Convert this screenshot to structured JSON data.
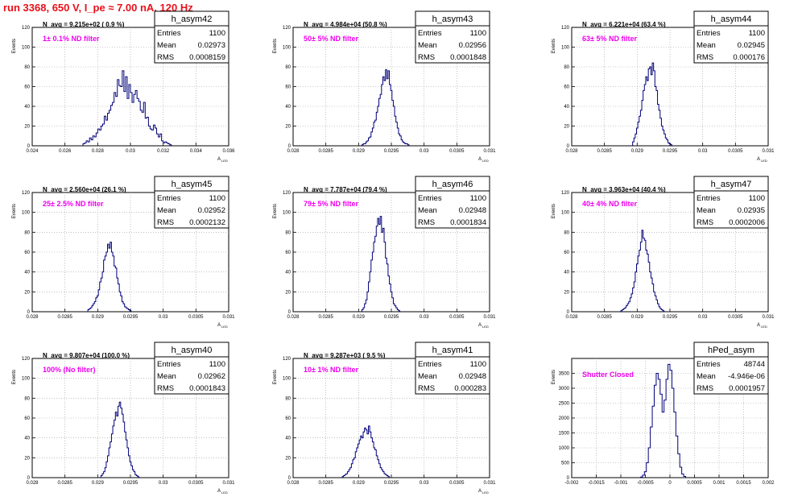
{
  "page": {
    "run_title": "run 3368,   650 V, I_pe ≈ 7.00 nA, 120 Hz",
    "colors": {
      "title": "#e8101a",
      "histogram": "#00007a",
      "note": "#ee00ee",
      "grid": "#9a9a9a"
    }
  },
  "chart_data": [
    {
      "type": "histogram",
      "name": "h_asym42",
      "stats": {
        "entries_label": "Entries",
        "entries": "1100",
        "mean_label": "Mean",
        "mean": "0.02973",
        "rms_label": "RMS",
        "rms": "0.0008159"
      },
      "navg": "N_avg = 9.215e+02 ( 0.9 %)",
      "note": "1± 0.1% ND filter",
      "ylabel": "Events",
      "xlabel": "A",
      "xlabel_sub": "LED",
      "xlim": [
        0.024,
        0.036
      ],
      "xticks": [
        "0.024",
        "0.026",
        "0.028",
        "0.03",
        "0.032",
        "0.034",
        "0.036"
      ],
      "ylim": [
        0,
        120
      ],
      "yticks": [
        "0",
        "20",
        "40",
        "60",
        "80",
        "100",
        "120"
      ],
      "grid": true,
      "bins": {
        "x_start": 0.0271,
        "bin_width": 0.0001,
        "values": [
          2,
          3,
          5,
          4,
          8,
          6,
          10,
          9,
          13,
          17,
          16,
          20,
          22,
          30,
          26,
          33,
          36,
          41,
          44,
          54,
          50,
          67,
          61,
          60,
          76,
          55,
          70,
          48,
          62,
          54,
          44,
          52,
          56,
          48,
          45,
          36,
          34,
          44,
          28,
          29,
          20,
          17,
          16,
          21,
          18,
          12,
          9,
          12,
          5,
          3,
          4,
          3,
          2,
          1
        ]
      }
    },
    {
      "type": "histogram",
      "name": "h_asym43",
      "stats": {
        "entries_label": "Entries",
        "entries": "1100",
        "mean_label": "Mean",
        "mean": "0.02956",
        "rms_label": "RMS",
        "rms": "0.0001848"
      },
      "navg": "N_avg = 4.984e+04 (50.8 %)",
      "note": "50± 5% ND filter",
      "ylabel": "Events",
      "xlabel": "A",
      "xlabel_sub": "LED",
      "xlim": [
        0.028,
        0.031
      ],
      "xticks": [
        "0.028",
        "0.0285",
        "0.029",
        "0.0295",
        "0.03",
        "0.0305",
        "0.031"
      ],
      "ylim": [
        0,
        120
      ],
      "yticks": [
        "0",
        "20",
        "40",
        "60",
        "80",
        "100",
        "120"
      ],
      "grid": true,
      "bins": {
        "x_start": 0.02905,
        "bin_width": 2e-05,
        "values": [
          1,
          2,
          2,
          4,
          5,
          8,
          9,
          14,
          18,
          24,
          26,
          34,
          40,
          48,
          52,
          62,
          70,
          66,
          77,
          68,
          76,
          62,
          56,
          46,
          40,
          30,
          24,
          18,
          12,
          10,
          6,
          4,
          3,
          2,
          2,
          1
        ]
      }
    },
    {
      "type": "histogram",
      "name": "h_asym44",
      "stats": {
        "entries_label": "Entries",
        "entries": "1100",
        "mean_label": "Mean",
        "mean": "0.02945",
        "rms_label": "RMS",
        "rms": "0.000176"
      },
      "navg": "N_avg = 6.221e+04 (63.4 %)",
      "note": "63± 5% ND filter",
      "ylabel": "Events",
      "xlabel": "A",
      "xlabel_sub": "LED",
      "xlim": [
        0.028,
        0.031
      ],
      "xticks": [
        "0.028",
        "0.0285",
        "0.029",
        "0.0295",
        "0.03",
        "0.0305",
        "0.031"
      ],
      "ylim": [
        0,
        120
      ],
      "yticks": [
        "0",
        "20",
        "40",
        "60",
        "80",
        "100",
        "120"
      ],
      "grid": true,
      "bins": {
        "x_start": 0.02893,
        "bin_width": 2e-05,
        "values": [
          4,
          8,
          12,
          18,
          24,
          30,
          36,
          46,
          56,
          62,
          70,
          66,
          78,
          80,
          72,
          84,
          76,
          60,
          56,
          42,
          36,
          28,
          20,
          16,
          12,
          8,
          6,
          3,
          2,
          1
        ]
      }
    },
    {
      "type": "histogram",
      "name": "h_asym45",
      "stats": {
        "entries_label": "Entries",
        "entries": "1100",
        "mean_label": "Mean",
        "mean": "0.02952",
        "rms_label": "RMS",
        "rms": "0.0002132"
      },
      "navg": "N_avg = 2.560e+04 (26.1 %)",
      "note": "25± 2.5% ND filter",
      "ylabel": "Events",
      "xlabel": "A",
      "xlabel_sub": "LED",
      "xlim": [
        0.028,
        0.031
      ],
      "xticks": [
        "0.028",
        "0.0285",
        "0.029",
        "0.0295",
        "0.03",
        "0.0305",
        "0.031"
      ],
      "ylim": [
        0,
        120
      ],
      "yticks": [
        "0",
        "20",
        "40",
        "60",
        "80",
        "100",
        "120"
      ],
      "grid": true,
      "bins": {
        "x_start": 0.02885,
        "bin_width": 2e-05,
        "values": [
          2,
          3,
          4,
          6,
          8,
          10,
          14,
          16,
          22,
          30,
          34,
          40,
          52,
          56,
          60,
          68,
          64,
          70,
          60,
          56,
          46,
          44,
          34,
          28,
          20,
          16,
          10,
          8,
          5,
          4,
          3,
          2,
          1
        ]
      }
    },
    {
      "type": "histogram",
      "name": "h_asym46",
      "stats": {
        "entries_label": "Entries",
        "entries": "1100",
        "mean_label": "Mean",
        "mean": "0.02948",
        "rms_label": "RMS",
        "rms": "0.0001834"
      },
      "navg": "N_avg = 7.787e+04 (79.4 %)",
      "note": "79± 5% ND filter",
      "ylabel": "Events",
      "xlabel": "A",
      "xlabel_sub": "LED",
      "xlim": [
        0.028,
        0.031
      ],
      "xticks": [
        "0.028",
        "0.0285",
        "0.029",
        "0.0295",
        "0.03",
        "0.0305",
        "0.031"
      ],
      "ylim": [
        0,
        120
      ],
      "yticks": [
        "0",
        "20",
        "40",
        "60",
        "80",
        "100",
        "120"
      ],
      "grid": true,
      "bins": {
        "x_start": 0.02905,
        "bin_width": 2e-05,
        "values": [
          2,
          4,
          8,
          12,
          20,
          30,
          40,
          52,
          60,
          70,
          76,
          86,
          94,
          88,
          96,
          80,
          84,
          70,
          54,
          48,
          36,
          28,
          20,
          14,
          8,
          6,
          4,
          2,
          1
        ]
      }
    },
    {
      "type": "histogram",
      "name": "h_asym47",
      "stats": {
        "entries_label": "Entries",
        "entries": "1100",
        "mean_label": "Mean",
        "mean": "0.02935",
        "rms_label": "RMS",
        "rms": "0.0002006"
      },
      "navg": "N_avg = 3.963e+04 (40.4 %)",
      "note": "40± 4% ND filter",
      "ylabel": "Events",
      "xlabel": "A",
      "xlabel_sub": "LED",
      "xlim": [
        0.028,
        0.031
      ],
      "xticks": [
        "0.028",
        "0.0285",
        "0.029",
        "0.0295",
        "0.03",
        "0.0305",
        "0.031"
      ],
      "ylim": [
        0,
        120
      ],
      "yticks": [
        "0",
        "20",
        "40",
        "60",
        "80",
        "100",
        "120"
      ],
      "grid": true,
      "bins": {
        "x_start": 0.02875,
        "bin_width": 2e-05,
        "values": [
          1,
          2,
          3,
          4,
          6,
          8,
          10,
          14,
          18,
          24,
          30,
          40,
          48,
          56,
          62,
          70,
          82,
          74,
          72,
          62,
          58,
          50,
          40,
          34,
          28,
          20,
          16,
          12,
          8,
          5,
          3,
          2,
          1
        ]
      }
    },
    {
      "type": "histogram",
      "name": "h_asym40",
      "stats": {
        "entries_label": "Entries",
        "entries": "1100",
        "mean_label": "Mean",
        "mean": "0.02962",
        "rms_label": "RMS",
        "rms": "0.0001843"
      },
      "navg": "N_avg = 9.807e+04 (100.0 %)",
      "note": "100% (No filter)",
      "ylabel": "Events",
      "xlabel": "A",
      "xlabel_sub": "LED",
      "xlim": [
        0.028,
        0.031
      ],
      "xticks": [
        "0.028",
        "0.0285",
        "0.029",
        "0.0295",
        "0.03",
        "0.0305",
        "0.031"
      ],
      "ylim": [
        0,
        120
      ],
      "yticks": [
        "0",
        "20",
        "40",
        "60",
        "80",
        "100",
        "120"
      ],
      "grid": true,
      "bins": {
        "x_start": 0.02905,
        "bin_width": 2e-05,
        "values": [
          2,
          4,
          6,
          10,
          16,
          22,
          30,
          36,
          44,
          52,
          58,
          66,
          62,
          72,
          76,
          70,
          64,
          56,
          46,
          38,
          30,
          22,
          16,
          12,
          8,
          6,
          3,
          2,
          1
        ]
      }
    },
    {
      "type": "histogram",
      "name": "h_asym41",
      "stats": {
        "entries_label": "Entries",
        "entries": "1100",
        "mean_label": "Mean",
        "mean": "0.02948",
        "rms_label": "RMS",
        "rms": "0.000283"
      },
      "navg": "N_avg = 9.287e+03 ( 9.5 %)",
      "note": "10± 1% ND filter",
      "ylabel": "Events",
      "xlabel": "A",
      "xlabel_sub": "LED",
      "xlim": [
        0.028,
        0.031
      ],
      "xticks": [
        "0.028",
        "0.0285",
        "0.029",
        "0.0295",
        "0.03",
        "0.0305",
        "0.031"
      ],
      "ylim": [
        0,
        120
      ],
      "yticks": [
        "0",
        "20",
        "40",
        "60",
        "80",
        "100",
        "120"
      ],
      "grid": true,
      "bins": {
        "x_start": 0.02875,
        "bin_width": 2e-05,
        "values": [
          1,
          2,
          3,
          4,
          6,
          8,
          10,
          14,
          18,
          20,
          26,
          30,
          34,
          38,
          42,
          40,
          46,
          50,
          48,
          44,
          52,
          46,
          40,
          36,
          30,
          28,
          22,
          18,
          14,
          10,
          8,
          6,
          4,
          3,
          2,
          1
        ]
      }
    },
    {
      "type": "histogram",
      "name": "hPed_asym",
      "stats": {
        "entries_label": "Entries",
        "entries": "48744",
        "mean_label": "Mean",
        "mean": "-4.946e-06",
        "rms_label": "RMS",
        "rms": "0.0001957"
      },
      "navg": "",
      "note": "Shutter Closed",
      "ylabel": "Events",
      "xlabel": "",
      "xlabel_sub": "",
      "xlim": [
        -0.002,
        0.002
      ],
      "xticks": [
        "-0.002",
        "-0.0015",
        "-0.001",
        "-0.0005",
        "0",
        "0.0005",
        "0.001",
        "0.0015",
        "0.002"
      ],
      "ylim": [
        0,
        4000
      ],
      "yticks": [
        "0",
        "500",
        "1000",
        "1500",
        "2000",
        "2500",
        "3000",
        "3500"
      ],
      "yticks_values": [
        0,
        500,
        1000,
        1500,
        2000,
        2500,
        3000,
        3500
      ],
      "grid": true,
      "bins": {
        "x_start": -0.0006,
        "bin_width": 4e-05,
        "values": [
          20,
          80,
          200,
          500,
          1000,
          1700,
          2400,
          3100,
          3500,
          3300,
          2800,
          2200,
          2600,
          3300,
          3800,
          3600,
          3000,
          2200,
          1400,
          800,
          350,
          120,
          40
        ]
      }
    }
  ]
}
